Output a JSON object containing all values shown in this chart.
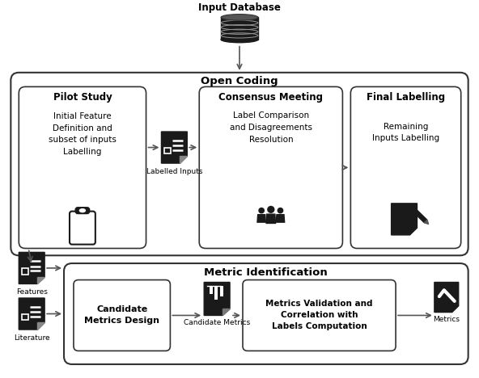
{
  "bg_color": "#ffffff",
  "db_title": "Input Database",
  "open_coding_label": "Open Coding",
  "metric_id_label": "Metric Identification",
  "pilot_study_title": "Pilot Study",
  "pilot_study_text": "Initial Feature\nDefinition and\nsubset of inputs\nLabelling",
  "consensus_title": "Consensus Meeting",
  "consensus_text": "Label Comparison\nand Disagreements\nResolution",
  "final_labelling_title": "Final Labelling",
  "final_labelling_text": "Remaining\nInputs Labelling",
  "labelled_inputs_label": "Labelled Inputs",
  "candidate_metrics_design_title": "Candidate\nMetrics Design",
  "candidate_metrics_label": "Candidate Metrics",
  "metrics_validation_text": "Metrics Validation and\nCorrelation with\nLabels Computation",
  "metrics_label": "Metrics",
  "features_label": "Features",
  "literature_label": "Literature"
}
